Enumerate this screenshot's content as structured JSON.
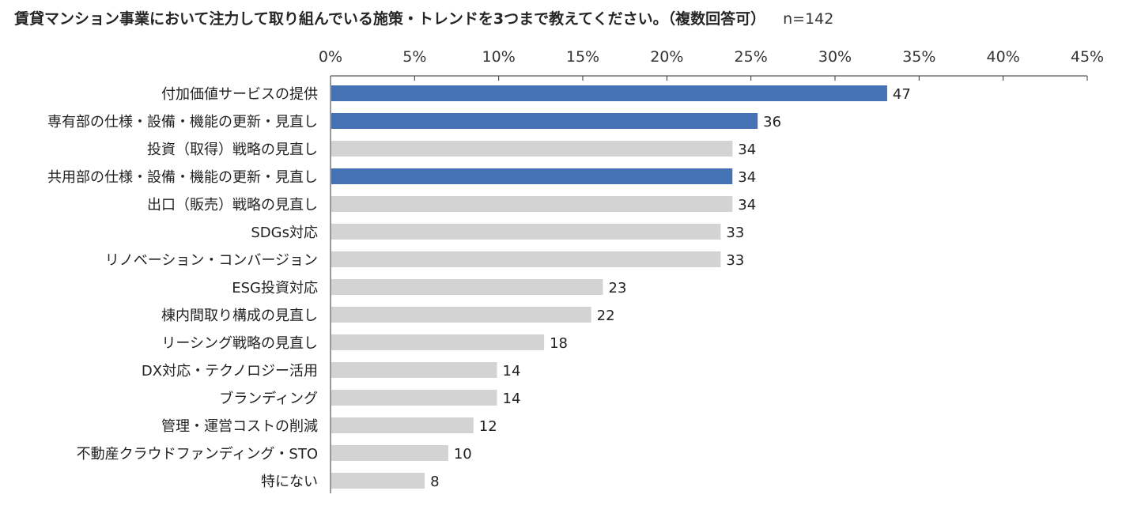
{
  "chart_data": {
    "type": "bar",
    "orientation": "horizontal",
    "title": "賃貸マンション事業において注力して取り組んでいる施策・トレンドを3つまで教えてください。（複数回答可）",
    "sample_size": "n=142",
    "x_axis": {
      "range": [
        0,
        45
      ],
      "unit": "%",
      "ticks": [
        "0%",
        "5%",
        "10%",
        "15%",
        "20%",
        "25%",
        "30%",
        "35%",
        "40%",
        "45%"
      ],
      "position": "top",
      "grid": false
    },
    "categories": [
      "付加価値サービスの提供",
      "専有部の仕様・設備・機能の更新・見直し",
      "投資（取得）戦略の見直し",
      "共用部の仕様・設備・機能の更新・見直し",
      "出口（販売）戦略の見直し",
      "SDGs対応",
      "リノベーション・コンバージョン",
      "ESG投資対応",
      "棟内間取り構成の見直し",
      "リーシング戦略の見直し",
      "DX対応・テクノロジー活用",
      "ブランディング",
      "管理・運営コストの削減",
      "不動産クラウドファンディング・STO",
      "特にない"
    ],
    "values": [
      47,
      36,
      34,
      34,
      34,
      33,
      33,
      23,
      22,
      18,
      14,
      14,
      12,
      10,
      8
    ],
    "percents": [
      33.1,
      25.4,
      23.9,
      23.9,
      23.9,
      23.2,
      23.2,
      16.2,
      15.5,
      12.7,
      9.9,
      9.9,
      8.5,
      7.0,
      5.6
    ],
    "highlighted": [
      true,
      true,
      false,
      true,
      false,
      false,
      false,
      false,
      false,
      false,
      false,
      false,
      false,
      false,
      false
    ],
    "colors": {
      "highlight": "#4472b4",
      "default": "#d3d3d3",
      "axis": "#333333"
    },
    "legend": "none"
  }
}
